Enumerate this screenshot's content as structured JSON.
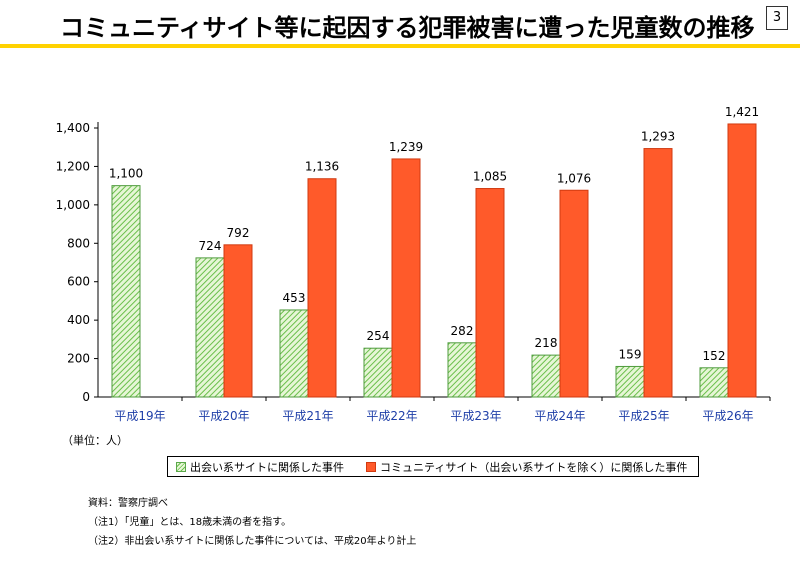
{
  "title": "コミュニティサイト等に起因する犯罪被害に遭った児童数の推移",
  "page_number": "3",
  "unit_label": "（単位：人）",
  "legend": {
    "series1": "出会い系サイトに関係した事件",
    "series2": "コミュニティサイト（出会い系サイトを除く）に関係した事件"
  },
  "notes": [
    "資料：警察庁調べ",
    "（注1）「児童」とは、18歳未満の者を指す。",
    "（注2）非出会い系サイトに関係した事件については、平成20年より計上"
  ],
  "colors": {
    "series1_fill": "#6abf4b",
    "series1_light": "#e6f6d6",
    "series2_fill": "#ff5a2a",
    "accent_rule": "#ffd200"
  },
  "chart_data": {
    "type": "bar",
    "categories": [
      "平成19年",
      "平成20年",
      "平成21年",
      "平成22年",
      "平成23年",
      "平成24年",
      "平成25年",
      "平成26年"
    ],
    "series": [
      {
        "name": "出会い系サイトに関係した事件",
        "values": [
          1100,
          724,
          453,
          254,
          282,
          218,
          159,
          152
        ],
        "labels": [
          "1,100",
          "724",
          "453",
          "254",
          "282",
          "218",
          "159",
          "152"
        ]
      },
      {
        "name": "コミュニティサイト（出会い系サイトを除く）に関係した事件",
        "values": [
          null,
          792,
          1136,
          1239,
          1085,
          1076,
          1293,
          1421
        ],
        "labels": [
          "",
          "792",
          "1,136",
          "1,239",
          "1,085",
          "1,076",
          "1,293",
          "1,421"
        ]
      }
    ],
    "ylim": [
      0,
      1400
    ],
    "yticks": [
      0,
      200,
      400,
      600,
      800,
      1000,
      1200,
      1400
    ],
    "ytick_labels": [
      "0",
      "200",
      "400",
      "600",
      "800",
      "1,000",
      "1,200",
      "1,400"
    ],
    "grid": false,
    "legend_position": "bottom"
  }
}
